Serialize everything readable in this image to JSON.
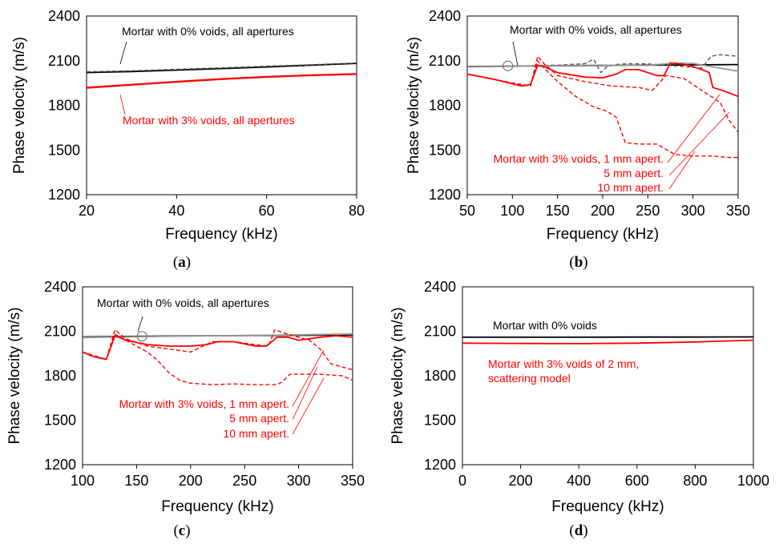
{
  "chart_data": [
    {
      "panel_label": "a",
      "type": "line",
      "xlabel": "Frequency (kHz)",
      "ylabel": "Phase velocity  (m/s)",
      "xlim": [
        20,
        80
      ],
      "ylim": [
        1200,
        2400
      ],
      "xticks": [
        "20",
        "40",
        "60",
        "80"
      ],
      "yticks": [
        "1200",
        "1500",
        "1800",
        "2100",
        "2400"
      ],
      "annotations": [
        {
          "text": "Mortar with 0% voids, all apertures",
          "color": "#000000"
        },
        {
          "text": "Mortar with 3% voids, all apertures",
          "color": "#ff0000"
        }
      ],
      "series": [
        {
          "color": "#000000",
          "style": "solid",
          "x": [
            20,
            30,
            40,
            50,
            60,
            70,
            80
          ],
          "y": [
            2020,
            2027,
            2037,
            2047,
            2058,
            2070,
            2082
          ]
        },
        {
          "color": "#555555",
          "style": "dashed",
          "x": [
            20,
            30,
            40,
            50,
            60,
            70,
            80
          ],
          "y": [
            2026,
            2032,
            2042,
            2052,
            2063,
            2073,
            2084
          ]
        },
        {
          "color": "#ff0000",
          "style": "solid",
          "x": [
            20,
            30,
            40,
            50,
            60,
            70,
            80
          ],
          "y": [
            1920,
            1940,
            1960,
            1978,
            1993,
            2004,
            2012
          ]
        },
        {
          "color": "#ff0000",
          "style": "solid",
          "x": [
            20,
            30,
            40,
            50,
            60,
            70,
            80
          ],
          "y": [
            1916,
            1937,
            1957,
            1975,
            1990,
            2001,
            2009
          ]
        }
      ]
    },
    {
      "panel_label": "b",
      "type": "line",
      "xlabel": "Frequency (kHz)",
      "ylabel": "Phase velocity  (m/s)",
      "xlim": [
        50,
        350
      ],
      "ylim": [
        1200,
        2400
      ],
      "xticks": [
        "50",
        "100",
        "150",
        "200",
        "250",
        "300",
        "350"
      ],
      "yticks": [
        "1200",
        "1500",
        "1800",
        "2100",
        "2400"
      ],
      "annotations": [
        {
          "text": "Mortar with 0% voids, all apertures",
          "color": "#000000"
        },
        {
          "text": "Mortar with 3% voids, 1 mm apert.",
          "color": "#ff0000"
        },
        {
          "text": "5 mm apert.",
          "color": "#ff0000"
        },
        {
          "text": "10 mm apert.",
          "color": "#ff0000"
        }
      ],
      "series": [
        {
          "color": "#000000",
          "style": "solid",
          "x": [
            50,
            100,
            150,
            200,
            250,
            300,
            350
          ],
          "y": [
            2060,
            2063,
            2066,
            2068,
            2070,
            2072,
            2074
          ]
        },
        {
          "color": "#555555",
          "style": "dashed",
          "x": [
            50,
            100,
            150,
            180,
            190,
            198,
            205,
            215,
            230,
            250,
            270,
            290,
            310,
            320,
            330,
            340,
            350
          ],
          "y": [
            2062,
            2065,
            2070,
            2080,
            2110,
            2020,
            2060,
            2075,
            2080,
            2078,
            2070,
            2060,
            2050,
            2130,
            2140,
            2135,
            2130
          ]
        },
        {
          "color": "#999999",
          "style": "solid",
          "x": [
            50,
            100,
            150,
            200,
            250,
            280,
            300,
            320,
            350
          ],
          "y": [
            2058,
            2062,
            2067,
            2070,
            2068,
            2085,
            2082,
            2060,
            2030
          ]
        },
        {
          "color": "#ff0000",
          "style": "solid",
          "x": [
            50,
            80,
            110,
            120,
            128,
            135,
            150,
            180,
            200,
            215,
            225,
            240,
            260,
            268,
            275,
            290,
            300,
            310,
            318,
            322,
            335,
            350
          ],
          "y": [
            2010,
            1975,
            1930,
            1940,
            2070,
            2060,
            2020,
            1990,
            1985,
            2010,
            2040,
            2040,
            2000,
            2000,
            2085,
            2075,
            2060,
            2040,
            2020,
            1920,
            1895,
            1860
          ]
        },
        {
          "color": "#ff0000",
          "style": "dashed",
          "x": [
            50,
            100,
            120,
            128,
            135,
            150,
            180,
            210,
            240,
            255,
            270,
            290,
            310,
            320,
            330,
            340,
            350
          ],
          "y": [
            2010,
            1950,
            1930,
            2130,
            2080,
            2000,
            1960,
            1930,
            1920,
            1900,
            2000,
            1980,
            1900,
            1860,
            1820,
            1700,
            1620
          ]
        },
        {
          "color": "#ff0000",
          "style": "dashed",
          "x": [
            50,
            100,
            120,
            128,
            135,
            150,
            170,
            190,
            205,
            215,
            225,
            240,
            260,
            280,
            300,
            320,
            340,
            350
          ],
          "y": [
            2010,
            1950,
            1930,
            2100,
            2050,
            1960,
            1860,
            1790,
            1760,
            1720,
            1550,
            1540,
            1540,
            1470,
            1460,
            1460,
            1450,
            1450
          ]
        }
      ]
    },
    {
      "panel_label": "c",
      "type": "line",
      "xlabel": "Frequency (kHz)",
      "ylabel": "Phase velocity  (m/s)",
      "xlim": [
        100,
        350
      ],
      "ylim": [
        1200,
        2400
      ],
      "xticks": [
        "100",
        "150",
        "200",
        "250",
        "300",
        "350"
      ],
      "yticks": [
        "1200",
        "1500",
        "1800",
        "2100",
        "2400"
      ],
      "annotations": [
        {
          "text": "Mortar with 0% voids, all apertures",
          "color": "#000000"
        },
        {
          "text": "Mortar with 3% voids, 1 mm apert.",
          "color": "#ff0000"
        },
        {
          "text": "5 mm apert.",
          "color": "#ff0000"
        },
        {
          "text": "10 mm apert.",
          "color": "#ff0000"
        }
      ],
      "series": [
        {
          "color": "#000000",
          "style": "solid",
          "x": [
            100,
            150,
            200,
            250,
            300,
            350
          ],
          "y": [
            2062,
            2066,
            2069,
            2071,
            2073,
            2075
          ]
        },
        {
          "color": "#555555",
          "style": "dashed",
          "x": [
            100,
            150,
            200,
            250,
            300,
            350
          ],
          "y": [
            2060,
            2064,
            2068,
            2072,
            2076,
            2080
          ]
        },
        {
          "color": "#999999",
          "style": "solid",
          "x": [
            100,
            150,
            200,
            250,
            300,
            350
          ],
          "y": [
            2058,
            2063,
            2068,
            2072,
            2076,
            2082
          ]
        },
        {
          "color": "#ff0000",
          "style": "solid",
          "x": [
            100,
            110,
            122,
            130,
            140,
            160,
            180,
            200,
            215,
            225,
            240,
            260,
            270,
            280,
            290,
            300,
            310,
            320,
            335,
            350
          ],
          "y": [
            1960,
            1930,
            1910,
            2070,
            2040,
            2010,
            2000,
            2000,
            2010,
            2030,
            2030,
            2000,
            2000,
            2060,
            2060,
            2040,
            2050,
            2060,
            2070,
            2060
          ]
        },
        {
          "color": "#ff0000",
          "style": "dashed",
          "x": [
            100,
            122,
            130,
            140,
            160,
            180,
            200,
            220,
            240,
            260,
            272,
            278,
            290,
            300,
            310,
            320,
            330,
            340,
            350
          ],
          "y": [
            1960,
            1910,
            2110,
            2050,
            2000,
            1980,
            1960,
            2030,
            2030,
            2010,
            2000,
            2110,
            2080,
            2060,
            2040,
            1980,
            1880,
            1860,
            1840
          ]
        },
        {
          "color": "#ff0000",
          "style": "dashed",
          "x": [
            100,
            122,
            130,
            140,
            160,
            170,
            180,
            190,
            200,
            220,
            240,
            260,
            280,
            285,
            292,
            300,
            320,
            340,
            350
          ],
          "y": [
            1960,
            1910,
            2080,
            2040,
            1960,
            1900,
            1820,
            1770,
            1750,
            1740,
            1745,
            1740,
            1740,
            1760,
            1810,
            1810,
            1810,
            1800,
            1770
          ]
        }
      ]
    },
    {
      "panel_label": "d",
      "type": "line",
      "xlabel": "Frequency (kHz)",
      "ylabel": "Phase velocity  (m/s)",
      "xlim": [
        0,
        1000
      ],
      "ylim": [
        1200,
        2400
      ],
      "xticks": [
        "0",
        "200",
        "400",
        "600",
        "800",
        "1000"
      ],
      "yticks": [
        "1200",
        "1500",
        "1800",
        "2100",
        "2400"
      ],
      "annotations": [
        {
          "text": "Mortar with 0% voids",
          "color": "#000000"
        },
        {
          "text": "Mortar with 3% voids of 2 mm,",
          "color": "#ff0000"
        },
        {
          "text": "scattering model",
          "color": "#ff0000"
        }
      ],
      "series": [
        {
          "color": "#000000",
          "style": "solid",
          "x": [
            0,
            200,
            400,
            600,
            800,
            1000
          ],
          "y": [
            2060,
            2060,
            2060,
            2061,
            2061,
            2062
          ]
        },
        {
          "color": "#ff0000",
          "style": "solid",
          "x": [
            0,
            200,
            400,
            600,
            800,
            1000
          ],
          "y": [
            2020,
            2018,
            2017,
            2020,
            2028,
            2040
          ]
        }
      ]
    }
  ]
}
